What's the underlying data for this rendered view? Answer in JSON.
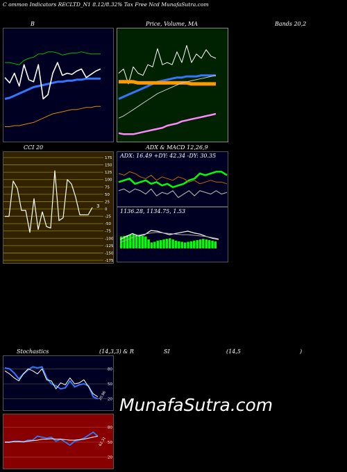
{
  "header": {
    "title": "C            ommon  Indicators RECLTD_N1 8.12/8.32% Tax Free   Ncd MunafaSutra.com"
  },
  "labels": {
    "bollinger_left": "B",
    "bollinger_right": "Bands 20,2",
    "price_ma": "Price, Volume, MA",
    "cci": "CCI 20",
    "adx_macd": "ADX  & MACD 12,26,9",
    "stoch_left": "Stochastics",
    "stoch_mid": "(14,3,3) & R",
    "stoch_si": "SI",
    "stoch_right": "(14,5",
    "stoch_close": ")",
    "watermark": "MunafaSutra.com"
  },
  "colors": {
    "bollinger_bg": "#000022",
    "price_bg": "#002200",
    "cci_bg": "#332200",
    "adx_bg": "#000022",
    "stoch_bg": "#000022",
    "rsi_bg": "#880000"
  },
  "chart_data": [
    {
      "type": "line",
      "name": "bollinger",
      "ylim": [
        0,
        100
      ],
      "series": [
        {
          "color": "#00bb00",
          "values": [
            72,
            72,
            71,
            70,
            74,
            76,
            77,
            80,
            80,
            82,
            82,
            81,
            79,
            80,
            81,
            81,
            82,
            81,
            80,
            80,
            80
          ]
        },
        {
          "color": "#3377ff",
          "values": [
            38,
            39,
            41,
            43,
            45,
            47,
            49,
            50,
            51,
            52,
            53,
            54,
            54,
            55,
            55,
            56,
            56,
            57,
            57,
            57,
            57
          ]
        },
        {
          "color": "#ffffff",
          "values": [
            58,
            53,
            62,
            50,
            70,
            56,
            54,
            70,
            38,
            42,
            62,
            72,
            60,
            62,
            61,
            64,
            66,
            58,
            61,
            64,
            66
          ]
        },
        {
          "color": "#dd8800",
          "values": [
            12,
            12,
            13,
            13,
            14,
            15,
            16,
            18,
            20,
            22,
            24,
            25,
            26,
            27,
            28,
            28,
            29,
            30,
            30,
            31,
            31
          ]
        }
      ]
    },
    {
      "type": "line",
      "name": "price-volume-ma",
      "ylim": [
        0,
        100
      ],
      "series": [
        {
          "color": "#ffffff",
          "values": [
            62,
            66,
            52,
            68,
            62,
            60,
            70,
            68,
            85,
            70,
            72,
            70,
            82,
            72,
            88,
            72,
            80,
            76,
            84,
            78,
            76
          ]
        },
        {
          "color": "#3377ff",
          "values": [
            38,
            40,
            42,
            44,
            46,
            48,
            50,
            52,
            54,
            55,
            56,
            57,
            58,
            58,
            59,
            59,
            59,
            60,
            60,
            60,
            60
          ]
        },
        {
          "color": "#ff9900",
          "values": [
            54,
            54,
            54,
            54,
            53,
            53,
            53,
            53,
            53,
            53,
            53,
            53,
            53,
            53,
            53,
            52,
            52,
            52,
            52,
            52,
            52
          ]
        },
        {
          "color": "#cccccc",
          "values": [
            20,
            22,
            25,
            28,
            31,
            34,
            37,
            40,
            43,
            45,
            47,
            49,
            51,
            53,
            54,
            55,
            56,
            57,
            58,
            59,
            60
          ]
        },
        {
          "color": "#ff88ff",
          "values": [
            6,
            5,
            5,
            5,
            6,
            7,
            8,
            9,
            10,
            11,
            13,
            14,
            15,
            17,
            18,
            19,
            20,
            21,
            22,
            23,
            24
          ]
        }
      ]
    },
    {
      "type": "line",
      "name": "cci",
      "ylim": [
        -175,
        175
      ],
      "ticks": [
        "175",
        "150",
        "125",
        "100",
        "75",
        "50",
        "25",
        "0",
        "-25",
        "-50",
        "-75",
        "-100",
        "-125",
        "-150",
        "-175"
      ],
      "last_value_label": "3",
      "series": [
        {
          "color": "#ffffff",
          "values": [
            -25,
            -25,
            95,
            70,
            -5,
            -5,
            -80,
            35,
            -70,
            -10,
            -60,
            -65,
            130,
            -40,
            -30,
            100,
            85,
            40,
            -20,
            -20,
            -20,
            5
          ]
        }
      ]
    },
    {
      "type": "line",
      "name": "adx",
      "ylim": [
        0,
        50
      ],
      "ticks": [],
      "annotation": "ADX: 16.49  +DY: 42.34  -DY: 30.35",
      "series": [
        {
          "color": "#00ff00",
          "values": [
            28,
            30,
            32,
            26,
            28,
            30,
            26,
            28,
            24,
            26,
            22,
            24,
            26,
            30,
            32,
            38,
            36,
            38,
            40,
            40,
            36
          ]
        },
        {
          "color": "#cc6600",
          "values": [
            38,
            36,
            40,
            38,
            34,
            32,
            36,
            30,
            34,
            32,
            30,
            34,
            32,
            28,
            30,
            26,
            28,
            30,
            28,
            28,
            26
          ]
        },
        {
          "color": "#aaaaaa",
          "values": [
            18,
            20,
            16,
            20,
            18,
            14,
            20,
            12,
            16,
            14,
            18,
            10,
            14,
            18,
            12,
            18,
            16,
            14,
            18,
            14,
            16
          ]
        }
      ]
    },
    {
      "type": "bar",
      "name": "macd",
      "annotation": "1136.28,  1134.75,  1.53",
      "ylim": [
        -40,
        100
      ],
      "bar_color": "#00ff00",
      "values": [
        40,
        42,
        44,
        46,
        48,
        46,
        44,
        42,
        40,
        30,
        20,
        22,
        26,
        28,
        30,
        32,
        34,
        30,
        26,
        24,
        22,
        20,
        22,
        24,
        26,
        28,
        30,
        32,
        30,
        28,
        26,
        24
      ],
      "series": [
        {
          "color": "#ffffff",
          "values": [
            30,
            40,
            50,
            42,
            46,
            60,
            58,
            52,
            46,
            50,
            54,
            58,
            52,
            48,
            40,
            34,
            30
          ]
        },
        {
          "color": "#aaaaaa",
          "values": [
            20,
            28,
            36,
            44,
            48,
            52,
            54,
            52,
            50,
            48,
            46,
            46,
            44,
            42,
            40,
            36,
            32
          ]
        }
      ]
    },
    {
      "type": "line",
      "name": "stochastics",
      "ylim": [
        0,
        100
      ],
      "ticks": [
        "80",
        "50",
        "20"
      ],
      "last_value_label": "20.96",
      "series": [
        {
          "color": "#3377ff",
          "values": [
            82,
            80,
            72,
            60,
            70,
            78,
            84,
            82,
            84,
            62,
            50,
            46,
            40,
            42,
            56,
            44,
            48,
            50,
            46,
            24,
            20
          ]
        },
        {
          "color": "#ffffff",
          "values": [
            76,
            70,
            62,
            56,
            70,
            80,
            76,
            70,
            80,
            58,
            56,
            40,
            52,
            48,
            62,
            50,
            52,
            58,
            44,
            30,
            24
          ]
        }
      ]
    },
    {
      "type": "line",
      "name": "rsi",
      "ylim": [
        0,
        100
      ],
      "ticks": [
        "80",
        "50",
        "20"
      ],
      "last_value_label": "62.31",
      "series": [
        {
          "color": "#3377ff",
          "values": [
            50,
            50,
            52,
            52,
            50,
            54,
            54,
            62,
            60,
            58,
            60,
            52,
            56,
            50,
            44,
            52,
            54,
            58,
            64,
            70,
            62
          ]
        },
        {
          "color": "#ffffff",
          "values": [
            50,
            50,
            51,
            51,
            51,
            52,
            53,
            54,
            56,
            56,
            57,
            56,
            56,
            55,
            54,
            54,
            55,
            56,
            58,
            60,
            62
          ]
        }
      ]
    }
  ]
}
